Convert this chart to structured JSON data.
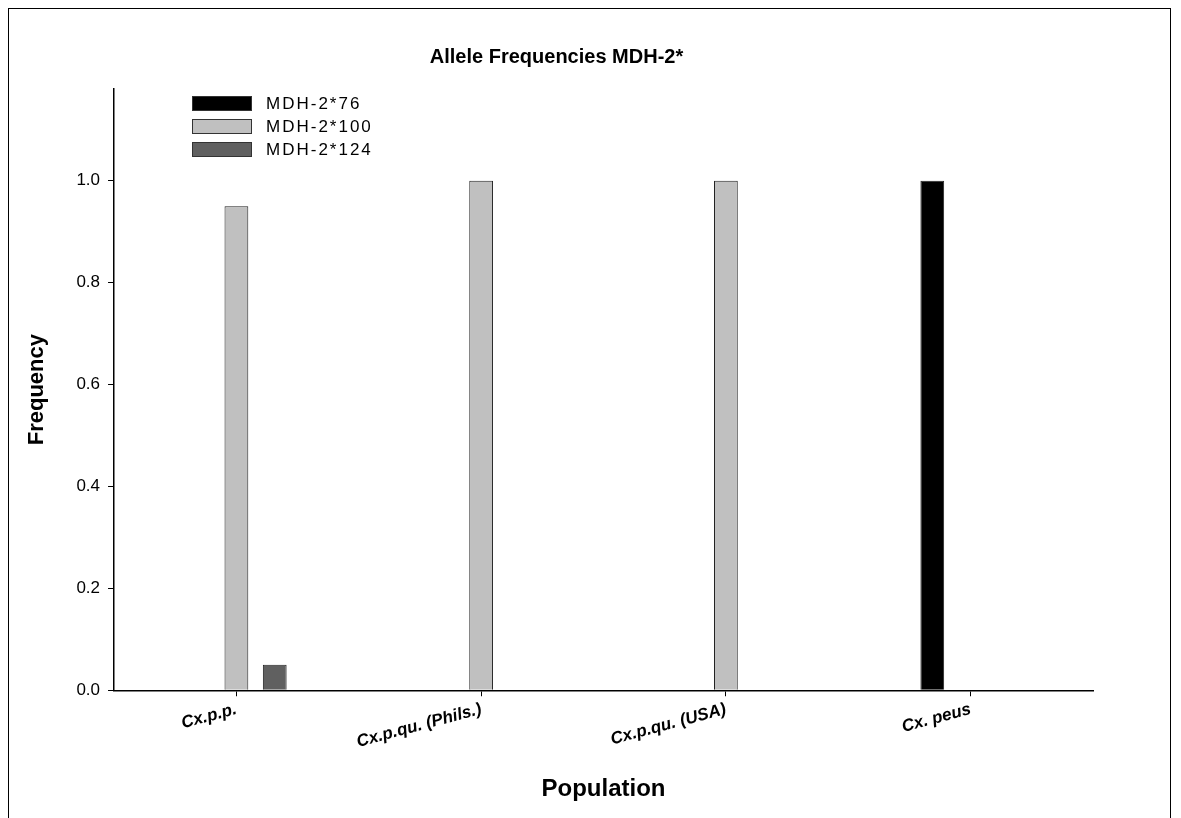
{
  "chart_data": {
    "type": "bar",
    "title": "Allele Frequencies MDH-2*",
    "xlabel": "Population",
    "ylabel": "Frequency",
    "categories": [
      "Cx.p.p.",
      "Cx.p.qu. (Phils.)",
      "Cx.p.qu. (USA)",
      "Cx. peus"
    ],
    "series": [
      {
        "name": "MDH-2*76",
        "color": "#000000",
        "values": [
          0,
          0,
          0,
          1.0
        ]
      },
      {
        "name": "MDH-2*100",
        "color": "#c0c0c0",
        "values": [
          0.95,
          1.0,
          1.0,
          0
        ]
      },
      {
        "name": "MDH-2*124",
        "color": "#606060",
        "values": [
          0.05,
          0,
          0,
          0
        ]
      }
    ],
    "ylim": [
      0,
      1.18
    ],
    "yticks": [
      {
        "value": 0,
        "label": "0.0"
      },
      {
        "value": 0.2,
        "label": "0.2"
      },
      {
        "value": 0.4,
        "label": "0.4"
      },
      {
        "value": 0.6,
        "label": "0.6"
      },
      {
        "value": 0.8,
        "label": "0.8"
      },
      {
        "value": 1.0,
        "label": "1.0"
      }
    ],
    "grid": false,
    "legend": "top left"
  }
}
